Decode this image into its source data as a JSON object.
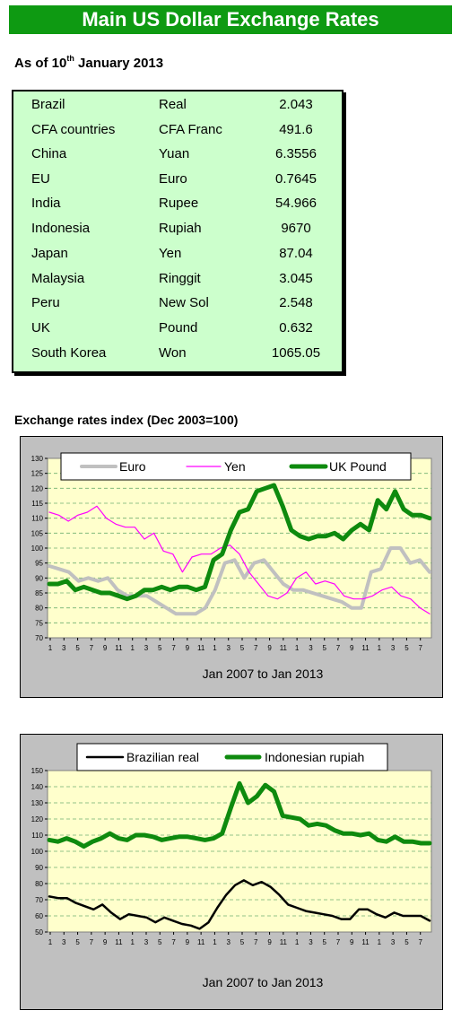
{
  "banner": {
    "title": "Main US Dollar Exchange Rates"
  },
  "as_of": {
    "prefix": "As of 10",
    "sup": "th",
    "suffix": " January 2013"
  },
  "rates_table": {
    "rows": [
      {
        "country": "Brazil",
        "currency": "Real",
        "value": "2.043"
      },
      {
        "country": "CFA countries",
        "currency": "CFA Franc",
        "value": "491.6"
      },
      {
        "country": "China",
        "currency": "Yuan",
        "value": "6.3556"
      },
      {
        "country": "EU",
        "currency": "Euro",
        "value": "0.7645"
      },
      {
        "country": "India",
        "currency": "Rupee",
        "value": "54.966"
      },
      {
        "country": "Indonesia",
        "currency": "Rupiah",
        "value": "9670"
      },
      {
        "country": "Japan",
        "currency": "Yen",
        "value": "87.04"
      },
      {
        "country": "Malaysia",
        "currency": "Ringgit",
        "value": "3.045"
      },
      {
        "country": "Peru",
        "currency": "New Sol",
        "value": "2.548"
      },
      {
        "country": "UK",
        "currency": "Pound",
        "value": "0.632"
      },
      {
        "country": "South Korea",
        "currency": "Won",
        "value": "1065.05"
      }
    ]
  },
  "section_title": "Exchange rates index (Dec 2003=100)",
  "chart_data": [
    {
      "type": "line",
      "title": "",
      "xlabel": "Jan 2007 to Jan 2013",
      "ylabel": "",
      "ylim": [
        70,
        130
      ],
      "yticks": [
        70,
        75,
        80,
        85,
        90,
        95,
        100,
        105,
        110,
        115,
        120,
        125,
        130
      ],
      "xticks": [
        "1",
        "3",
        "5",
        "7",
        "9",
        "11",
        "1",
        "3",
        "5",
        "7",
        "9",
        "11",
        "1",
        "3",
        "5",
        "7",
        "9",
        "11",
        "1",
        "3",
        "5",
        "7",
        "9",
        "11",
        "1",
        "3",
        "5",
        "7"
      ],
      "grid": true,
      "legend": "top",
      "series": [
        {
          "name": "Euro",
          "color": "#c0c0c0",
          "width": 4,
          "values": [
            94,
            93,
            92,
            89,
            90,
            89,
            90,
            86,
            84,
            84,
            84,
            82,
            80,
            78,
            78,
            78,
            80,
            86,
            95,
            96,
            90,
            95,
            96,
            92,
            88,
            86,
            86,
            85,
            84,
            83,
            82,
            80,
            80,
            92,
            93,
            100,
            100,
            95,
            96,
            92
          ]
        },
        {
          "name": "Yen",
          "color": "#ff00ff",
          "width": 1.2,
          "values": [
            112,
            111,
            109,
            111,
            112,
            114,
            110,
            108,
            107,
            107,
            103,
            105,
            99,
            98,
            92,
            97,
            98,
            98,
            100,
            101,
            98,
            92,
            88,
            84,
            83,
            85,
            90,
            92,
            88,
            89,
            88,
            84,
            83,
            83,
            84,
            86,
            87,
            84,
            83,
            80,
            78
          ]
        },
        {
          "name": "UK Pound",
          "color": "#0e8a0e",
          "width": 5,
          "values": [
            88,
            88,
            89,
            86,
            87,
            86,
            85,
            85,
            84,
            83,
            84,
            86,
            86,
            87,
            86,
            87,
            87,
            86,
            87,
            96,
            98,
            106,
            112,
            113,
            119,
            120,
            121,
            114,
            106,
            104,
            103,
            104,
            104,
            105,
            103,
            106,
            108,
            106,
            116,
            113,
            119,
            113,
            111,
            111,
            110
          ]
        }
      ]
    },
    {
      "type": "line",
      "title": "",
      "xlabel": "Jan 2007 to Jan 2013",
      "ylabel": "",
      "ylim": [
        50,
        150
      ],
      "yticks": [
        50,
        60,
        70,
        80,
        90,
        100,
        110,
        120,
        130,
        140,
        150
      ],
      "xticks": [
        "1",
        "3",
        "5",
        "7",
        "9",
        "11",
        "1",
        "3",
        "5",
        "7",
        "9",
        "11",
        "1",
        "3",
        "5",
        "7",
        "9",
        "11",
        "1",
        "3",
        "5",
        "7",
        "9",
        "11",
        "1",
        "3",
        "5",
        "7"
      ],
      "grid": true,
      "legend": "top",
      "series": [
        {
          "name": "Brazilian real",
          "color": "#000000",
          "width": 2.5,
          "values": [
            72,
            71,
            71,
            68,
            66,
            64,
            67,
            62,
            58,
            61,
            60,
            59,
            56,
            59,
            57,
            55,
            54,
            52,
            56,
            65,
            73,
            79,
            82,
            79,
            81,
            78,
            73,
            67,
            65,
            63,
            62,
            61,
            60,
            58,
            58,
            64,
            64,
            61,
            59,
            62,
            60,
            60,
            60,
            57
          ]
        },
        {
          "name": "Indonesian rupiah",
          "color": "#0e8a0e",
          "width": 5,
          "values": [
            107,
            106,
            108,
            106,
            103,
            106,
            108,
            111,
            108,
            107,
            110,
            110,
            109,
            107,
            108,
            109,
            109,
            108,
            107,
            108,
            111,
            127,
            142,
            130,
            134,
            141,
            137,
            122,
            121,
            120,
            116,
            117,
            116,
            113,
            111,
            111,
            110,
            111,
            107,
            106,
            109,
            106,
            106,
            105,
            105
          ]
        }
      ]
    }
  ]
}
